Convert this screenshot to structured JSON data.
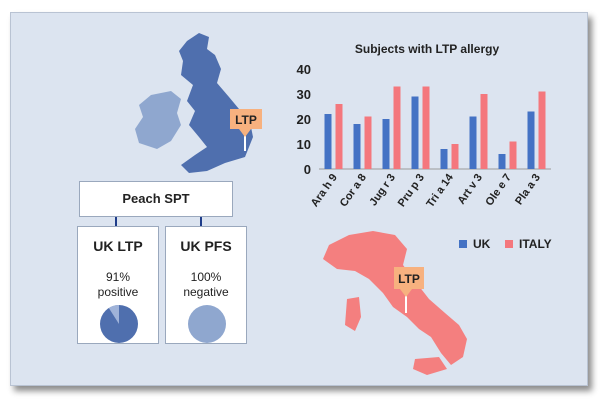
{
  "map_labels": {
    "uk": "LTP",
    "italy": "LTP"
  },
  "flow": {
    "spt_label": "Peach SPT",
    "uk_ltp": {
      "title": "UK LTP",
      "percent": "91%",
      "status": "positive",
      "pie_fraction": 0.91
    },
    "uk_pfs": {
      "title": "UK PFS",
      "percent": "100%",
      "status": "negative",
      "pie_fraction": 1.0
    }
  },
  "colors": {
    "uk": "#4472c4",
    "italy": "#f4777d",
    "uk_map": "#4f6fae",
    "ireland_map": "#8fa7cf",
    "italy_map": "#f47f7f",
    "flag": "#f7b17f"
  },
  "chart_data": {
    "type": "bar",
    "title": "Subjects with LTP allergy",
    "categories": [
      "Ara h 9",
      "Cor a 8",
      "Jug r 3",
      "Pru p 3",
      "Tri a 14",
      "Art v 3",
      "Ole e 7",
      "Pla a 3"
    ],
    "series": [
      {
        "name": "UK",
        "values": [
          22,
          18,
          20,
          29,
          8,
          21,
          6,
          23
        ]
      },
      {
        "name": "ITALY",
        "values": [
          26,
          21,
          33,
          33,
          10,
          30,
          11,
          31
        ]
      }
    ],
    "ylim": [
      0,
      40
    ],
    "yticks": [
      "0",
      "10",
      "20",
      "30",
      "40"
    ],
    "grid": false,
    "legend": "bottom-right"
  }
}
